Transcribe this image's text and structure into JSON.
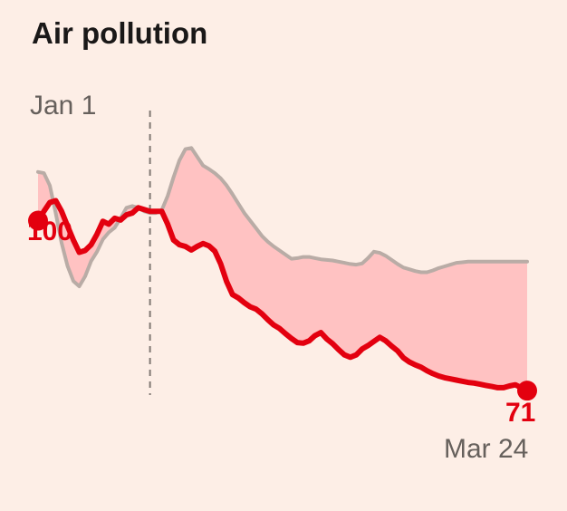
{
  "colors": {
    "background": "#fdeee6",
    "current_line": "#e3000f",
    "baseline_line": "#b9aca6",
    "gap_fill": "#ffc2c2",
    "divider": "#807873",
    "title": "#1a1818",
    "muted_text": "#66605c"
  },
  "chart_data": {
    "type": "line",
    "title": "Air pollution",
    "start_label": "Jan 1",
    "end_label": "Mar 24",
    "xlabel": "",
    "ylabel": "",
    "x": [
      0,
      1,
      2,
      3,
      4,
      5,
      6,
      7,
      8,
      9,
      10,
      11,
      12,
      13,
      14,
      15,
      16,
      17,
      18,
      19,
      20,
      21,
      22,
      23,
      24,
      25,
      26,
      27,
      28,
      29,
      30,
      31,
      32,
      33,
      34,
      35,
      36,
      37,
      38,
      39,
      40,
      41,
      42,
      43,
      44,
      45,
      46,
      47,
      48,
      49,
      50,
      51,
      52,
      53,
      54,
      55,
      56,
      57,
      58,
      59,
      60,
      61,
      62,
      63,
      64,
      65,
      66,
      67,
      68,
      69,
      70,
      71,
      72,
      73,
      74,
      75,
      76,
      77,
      78,
      79,
      80,
      81,
      82,
      83
    ],
    "xlim": [
      0,
      83
    ],
    "ylim": [
      65,
      116
    ],
    "divider_x": 19,
    "series": [
      {
        "role": "current",
        "values": [
          100,
          101.6,
          103.1,
          103.4,
          101.6,
          99.1,
          96.7,
          94.6,
          94.9,
          95.9,
          97.7,
          99.9,
          99.4,
          100.4,
          100.1,
          101.0,
          101.3,
          102.2,
          101.9,
          101.6,
          101.6,
          101.6,
          99.4,
          96.7,
          95.9,
          95.6,
          95.0,
          95.6,
          96.1,
          95.7,
          94.8,
          92.6,
          89.6,
          87.4,
          86.8,
          86.0,
          85.3,
          84.9,
          84.1,
          83.1,
          82.2,
          81.6,
          80.7,
          79.9,
          79.2,
          79.1,
          79.5,
          80.4,
          80.9,
          79.8,
          79.0,
          78.0,
          77.1,
          76.7,
          77.1,
          78.1,
          78.7,
          79.4,
          80.1,
          79.5,
          78.6,
          77.8,
          76.6,
          75.9,
          75.4,
          75.0,
          74.4,
          73.9,
          73.5,
          73.2,
          73.0,
          72.8,
          72.6,
          72.4,
          72.3,
          72.1,
          71.9,
          71.7,
          71.5,
          71.5,
          71.8,
          72.0,
          71.5,
          71.0
        ]
      },
      {
        "role": "baseline",
        "values": [
          108.3,
          108.1,
          106,
          101.3,
          96.2,
          92.3,
          89.7,
          88.8,
          90.5,
          93.1,
          94.7,
          96.8,
          98.0,
          98.8,
          100.4,
          102.2,
          102.5,
          102.2,
          101.6,
          101.3,
          101.3,
          101.8,
          104.2,
          107.4,
          110.3,
          112.2,
          112.4,
          110.9,
          109.4,
          108.8,
          108.1,
          107.2,
          106.0,
          104.5,
          102.9,
          101.3,
          100.0,
          98.7,
          97.4,
          96.4,
          95.6,
          94.9,
          94.2,
          93.5,
          93.6,
          93.8,
          93.8,
          93.6,
          93.4,
          93.3,
          93.2,
          93.0,
          92.8,
          92.6,
          92.5,
          92.7,
          93.6,
          94.7,
          94.5,
          94.0,
          93.3,
          92.6,
          92.0,
          91.7,
          91.4,
          91.2,
          91.2,
          91.5,
          91.9,
          92.2,
          92.5,
          92.8,
          92.9,
          93.0,
          93.0,
          93.0,
          93.0,
          93.0,
          93.0,
          93.0,
          93.0,
          93.0,
          93.0,
          93.0
        ]
      }
    ],
    "start_value": 100,
    "end_value": 71,
    "start_value_label": "100",
    "end_value_label": "71"
  }
}
